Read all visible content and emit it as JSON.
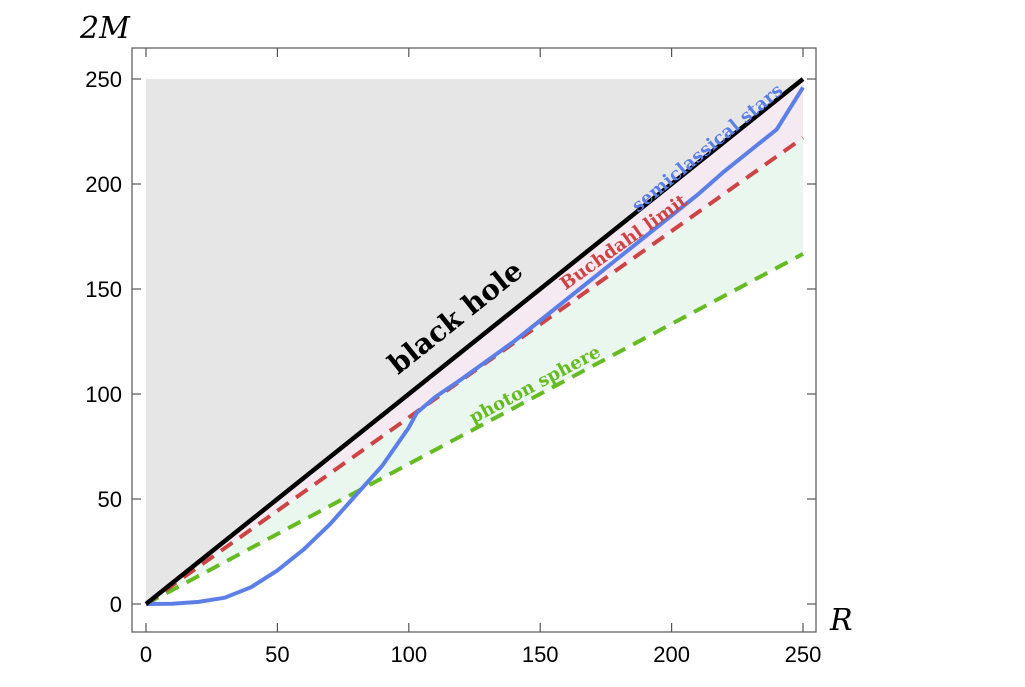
{
  "chart_data": {
    "type": "line",
    "xlabel": "R",
    "ylabel": "2M",
    "xlim": [
      -5,
      256
    ],
    "ylim": [
      -13,
      260
    ],
    "xticks": [
      0,
      50,
      100,
      150,
      200,
      250
    ],
    "yticks": [
      0,
      50,
      100,
      150,
      200,
      250
    ],
    "grid": false,
    "legend": "none",
    "series": [
      {
        "name": "black hole",
        "style": "solid",
        "color": "#000000",
        "x": [
          0,
          250
        ],
        "y": [
          0,
          250
        ]
      },
      {
        "name": "Buchdahl limit",
        "style": "dashed",
        "color": "#cc4444",
        "x": [
          0,
          250
        ],
        "y": [
          0,
          222
        ]
      },
      {
        "name": "photon sphere",
        "style": "dashed",
        "color": "#66bb22",
        "x": [
          0,
          250
        ],
        "y": [
          0,
          166.7
        ]
      },
      {
        "name": "semiclassical stars",
        "style": "solid",
        "color": "#5b7fe6",
        "x": [
          0,
          10,
          20,
          30,
          40,
          50,
          60,
          70,
          80,
          90,
          100,
          103,
          110,
          120,
          130,
          140,
          150,
          160,
          170,
          180,
          190,
          200,
          210,
          220,
          230,
          240,
          250
        ],
        "y": [
          0,
          0.1,
          1,
          3,
          8,
          16,
          26,
          38,
          52,
          66,
          84,
          91,
          98.5,
          107,
          116,
          125,
          135,
          145,
          155,
          165,
          175,
          185,
          195,
          206,
          216,
          226,
          246
        ]
      }
    ],
    "regions": [
      {
        "name": "black-hole-region",
        "color": "#e6e6e6"
      },
      {
        "name": "buchdahl-region",
        "color": "#f5eaf2"
      },
      {
        "name": "photon-region",
        "color": "#e9f7ef"
      }
    ],
    "annotations": [
      {
        "text": "black hole",
        "x": 120,
        "y": 133,
        "color": "#000000"
      },
      {
        "text": "semiclassical stars",
        "x": 215,
        "y": 215,
        "color": "#5b7fe6"
      },
      {
        "text": "Buchdahl limit",
        "x": 183,
        "y": 170,
        "color": "#cc4444"
      },
      {
        "text": "photon sphere",
        "x": 149,
        "y": 102,
        "color": "#66bb22"
      }
    ]
  }
}
